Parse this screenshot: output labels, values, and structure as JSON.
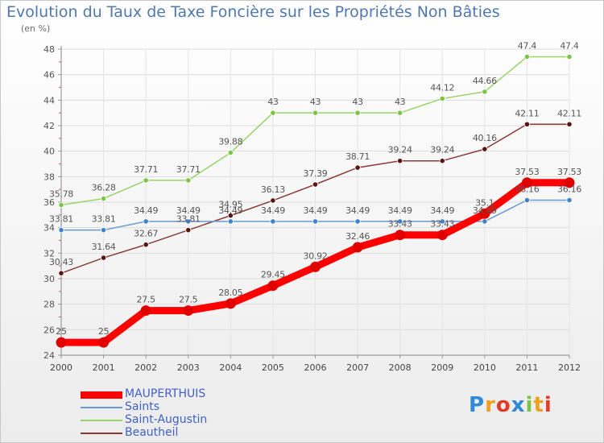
{
  "chart_data": {
    "type": "line",
    "title": "Evolution du Taux de Taxe Foncière sur les Propriétés Non Bâties",
    "subtitle": "(en %)",
    "x": [
      "2000",
      "2001",
      "2002",
      "2003",
      "2004",
      "2005",
      "2006",
      "2007",
      "2008",
      "2009",
      "2010",
      "2011",
      "2012"
    ],
    "ylim": [
      24,
      48
    ],
    "yticks": [
      24,
      26,
      28,
      30,
      32,
      34,
      36,
      38,
      40,
      42,
      44,
      46,
      48
    ],
    "grid": true,
    "legend_position": "bottom-left",
    "series": [
      {
        "name": "MAUPERTHUIS",
        "color": "#ff0000",
        "marker_color": "#e00000",
        "width": 9,
        "values": [
          25,
          25,
          27.5,
          27.5,
          28.05,
          29.45,
          30.92,
          32.46,
          33.43,
          33.43,
          35.1,
          37.53,
          37.53
        ],
        "labels": [
          "25",
          "25",
          "27.5",
          "27.5",
          "28.05",
          "29.45",
          "30.92",
          "32.46",
          "33.43",
          "33.43",
          "35.1",
          "37.53",
          "37.53"
        ]
      },
      {
        "name": "Saints",
        "color": "#6a9ccf",
        "marker_color": "#3f84c8",
        "width": 1.5,
        "values": [
          33.81,
          33.81,
          34.49,
          34.49,
          34.49,
          34.49,
          34.49,
          34.49,
          34.49,
          34.49,
          34.49,
          36.16,
          36.16
        ],
        "labels": [
          "33.81",
          "33.81",
          "34.49",
          "34.49",
          "34.49",
          "34.49",
          "34.49",
          "34.49",
          "34.49",
          "34.49",
          "34.49",
          "36.16",
          "36.16"
        ]
      },
      {
        "name": "Saint-Augustin",
        "color": "#99d36a",
        "marker_color": "#7cc544",
        "width": 1.5,
        "values": [
          35.78,
          36.28,
          37.71,
          37.71,
          39.88,
          43,
          43,
          43,
          43,
          44.12,
          44.66,
          47.4,
          47.4
        ],
        "labels": [
          "35.78",
          "36.28",
          "37.71",
          "37.71",
          "39.88",
          "43",
          "43",
          "43",
          "43",
          "44.12",
          "44.66",
          "47.4",
          "47.4"
        ]
      },
      {
        "name": "Beautheil",
        "color": "#8b3a3a",
        "marker_color": "#5a1414",
        "width": 1.5,
        "values": [
          30.43,
          31.64,
          32.67,
          33.81,
          34.95,
          36.13,
          37.39,
          38.71,
          39.24,
          39.24,
          40.16,
          42.11,
          42.11
        ],
        "labels": [
          "30.43",
          "31.64",
          "32.67",
          "33.81",
          "34.95",
          "36.13",
          "37.39",
          "38.71",
          "39.24",
          "39.24",
          "40.16",
          "42.11",
          "42.11"
        ]
      }
    ]
  },
  "legend": {
    "items": [
      "MAUPERTHUIS",
      "Saints",
      "Saint-Augustin",
      "Beautheil"
    ]
  },
  "logo": {
    "text": "Proxiti",
    "letter_colors": [
      "#2f8bd6",
      "#f0a020",
      "#e03c28",
      "#2f8bd6",
      "#7cc544",
      "#f0a020",
      "#e03c28"
    ]
  }
}
